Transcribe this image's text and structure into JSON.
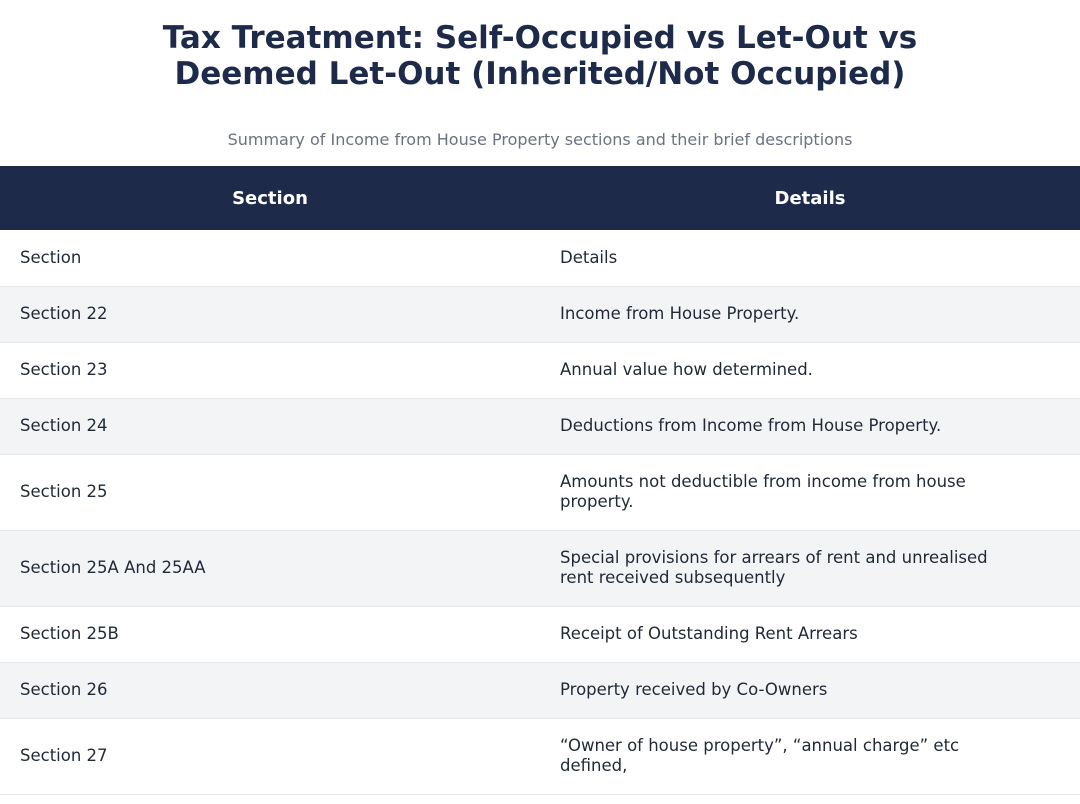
{
  "header": {
    "title_line1": "Tax Treatment: Self-Occupied vs Let-Out vs",
    "title_line2": "Deemed Let-Out (Inherited/Not Occupied)",
    "subtitle": "Summary of Income from House Property sections and their brief descriptions"
  },
  "table": {
    "columns": [
      "Section",
      "Details"
    ],
    "rows": [
      {
        "section": "Section",
        "details": "Details"
      },
      {
        "section": "Section 22",
        "details": "Income from House Property."
      },
      {
        "section": "Section 23",
        "details": "Annual value how determined."
      },
      {
        "section": "Section 24",
        "details": "Deductions from Income from House Property."
      },
      {
        "section": "Section 25",
        "details": "Amounts not deductible from income from house property."
      },
      {
        "section": "Section 25A And 25AA",
        "details": "Special provisions for arrears of rent and unrealised rent received subsequently"
      },
      {
        "section": "Section 25B",
        "details": "Receipt of Outstanding Rent Arrears"
      },
      {
        "section": "Section 26",
        "details": "Property received by Co-Owners"
      },
      {
        "section": "Section 27",
        "details": "“Owner of house property”, “annual charge” etc defined,"
      }
    ]
  }
}
